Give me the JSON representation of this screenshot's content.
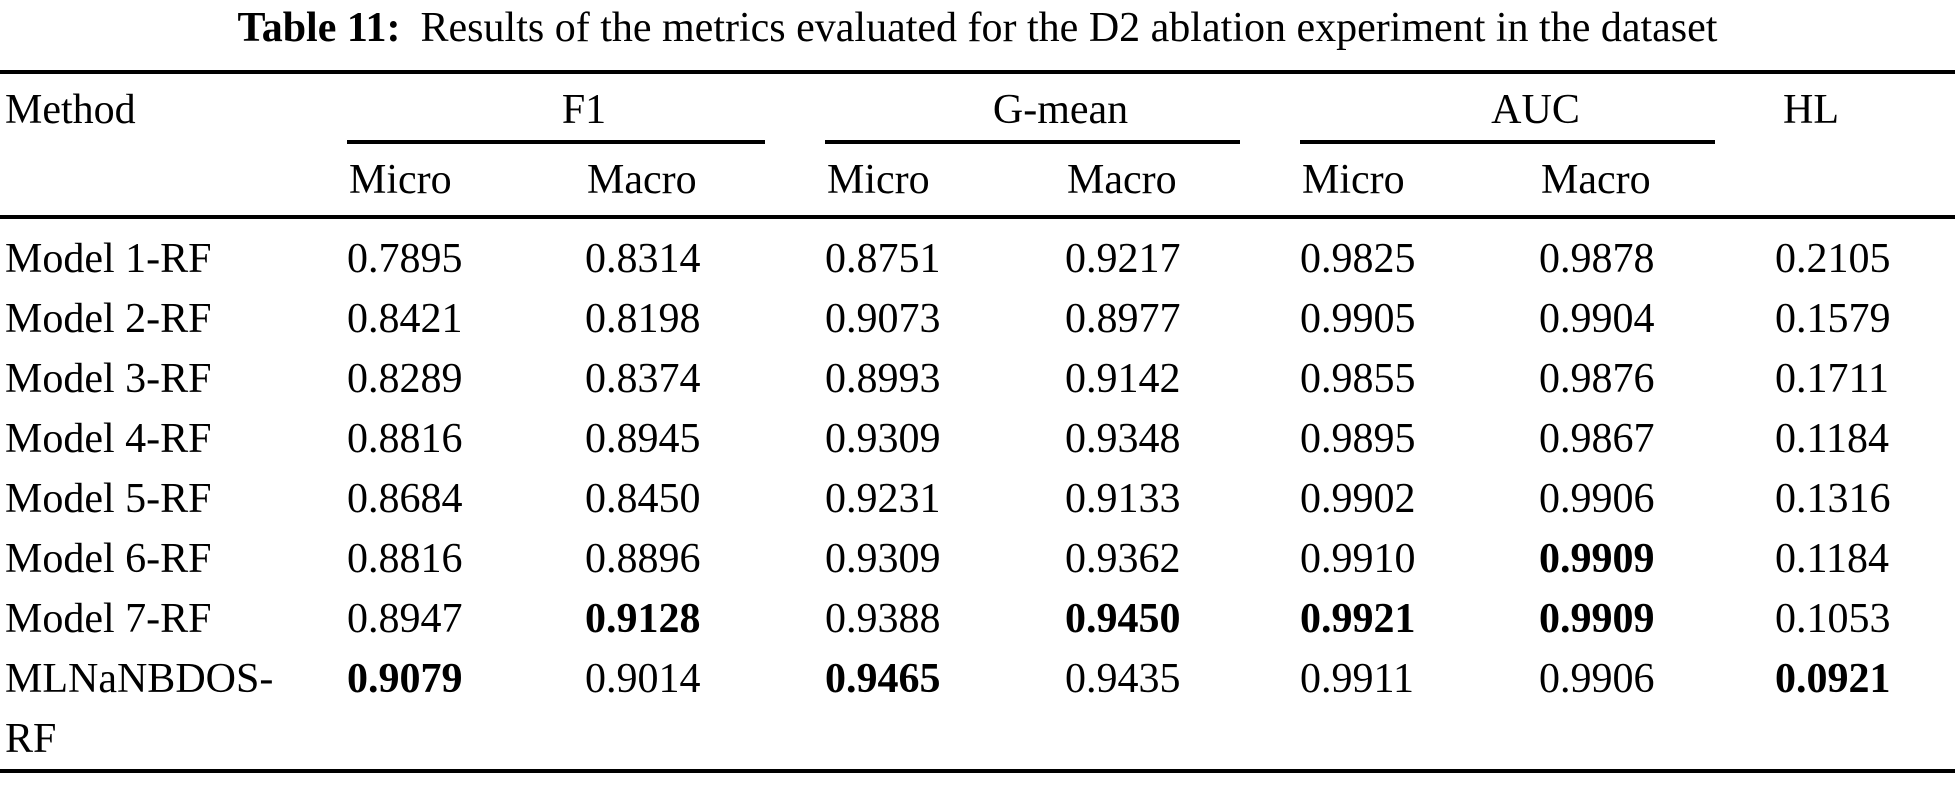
{
  "caption": {
    "label": "Table 11:",
    "text": "Results of the metrics evaluated for the D2 ablation experiment in the dataset"
  },
  "table": {
    "method_header": "Method",
    "group_headers": [
      "F1",
      "G-mean",
      "AUC"
    ],
    "hl_header": "HL",
    "subheaders": [
      "Micro",
      "Macro",
      "Micro",
      "Macro",
      "Micro",
      "Macro"
    ],
    "rows": [
      {
        "method": "Model 1-RF",
        "values": [
          "0.7895",
          "0.8314",
          "0.8751",
          "0.9217",
          "0.9825",
          "0.9878",
          "0.2105"
        ],
        "bold": [
          false,
          false,
          false,
          false,
          false,
          false,
          false
        ]
      },
      {
        "method": "Model 2-RF",
        "values": [
          "0.8421",
          "0.8198",
          "0.9073",
          "0.8977",
          "0.9905",
          "0.9904",
          "0.1579"
        ],
        "bold": [
          false,
          false,
          false,
          false,
          false,
          false,
          false
        ]
      },
      {
        "method": "Model 3-RF",
        "values": [
          "0.8289",
          "0.8374",
          "0.8993",
          "0.9142",
          "0.9855",
          "0.9876",
          "0.1711"
        ],
        "bold": [
          false,
          false,
          false,
          false,
          false,
          false,
          false
        ]
      },
      {
        "method": "Model 4-RF",
        "values": [
          "0.8816",
          "0.8945",
          "0.9309",
          "0.9348",
          "0.9895",
          "0.9867",
          "0.1184"
        ],
        "bold": [
          false,
          false,
          false,
          false,
          false,
          false,
          false
        ]
      },
      {
        "method": "Model 5-RF",
        "values": [
          "0.8684",
          "0.8450",
          "0.9231",
          "0.9133",
          "0.9902",
          "0.9906",
          "0.1316"
        ],
        "bold": [
          false,
          false,
          false,
          false,
          false,
          false,
          false
        ]
      },
      {
        "method": "Model 6-RF",
        "values": [
          "0.8816",
          "0.8896",
          "0.9309",
          "0.9362",
          "0.9910",
          "0.9909",
          "0.1184"
        ],
        "bold": [
          false,
          false,
          false,
          false,
          false,
          true,
          false
        ]
      },
      {
        "method": "Model 7-RF",
        "values": [
          "0.8947",
          "0.9128",
          "0.9388",
          "0.9450",
          "0.9921",
          "0.9909",
          "0.1053"
        ],
        "bold": [
          false,
          true,
          false,
          true,
          true,
          true,
          false
        ]
      },
      {
        "method": "MLNaNBDOS-RF",
        "values": [
          "0.9079",
          "0.9014",
          "0.9465",
          "0.9435",
          "0.9911",
          "0.9906",
          "0.0921"
        ],
        "bold": [
          true,
          false,
          true,
          false,
          false,
          false,
          true
        ]
      }
    ]
  },
  "colors": {
    "text": "#000000",
    "background": "#ffffff",
    "rule": "#000000"
  }
}
